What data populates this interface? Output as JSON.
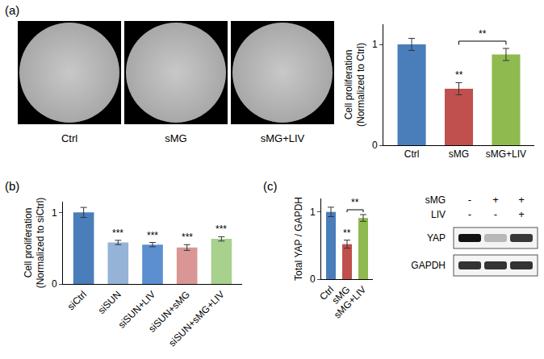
{
  "panel_labels": [
    "(a)",
    "(b)",
    "(c)"
  ],
  "images": {
    "labels": [
      "Ctrl",
      "sMG",
      "sMG+LIV"
    ]
  },
  "chart_data": [
    {
      "type": "bar",
      "categories": [
        "Ctrl",
        "sMG",
        "sMG+LIV"
      ],
      "values": [
        1.0,
        0.56,
        0.9
      ],
      "errors": [
        0.06,
        0.06,
        0.06
      ],
      "colors": [
        "#4a7ebb",
        "#c0504d",
        "#8fba4f"
      ],
      "y_label": [
        "Cell proliferation",
        "(Normalized to Ctrl)"
      ],
      "ylim": [
        0,
        1.2
      ],
      "yticks": [
        0,
        1
      ],
      "grid": false,
      "annotations": [
        {
          "text": "**",
          "category": "sMG"
        }
      ],
      "brackets": [
        {
          "text": "**",
          "from": "sMG",
          "to": "sMG+LIV"
        }
      ]
    },
    {
      "type": "bar",
      "categories": [
        "siCtrl",
        "siSUN",
        "siSUN+LIV",
        "siSUN+sMG",
        "siSUN+sMG+LIV"
      ],
      "values": [
        1.0,
        0.58,
        0.55,
        0.51,
        0.63
      ],
      "errors": [
        0.07,
        0.03,
        0.03,
        0.04,
        0.03
      ],
      "colors": [
        "#4a7ebb",
        "#95b3d7",
        "#5b8fd0",
        "#d99694",
        "#a9d18e"
      ],
      "y_label": [
        "Cell proliferation",
        "(Normalized to siCtrl)"
      ],
      "ylim": [
        0,
        1.15
      ],
      "yticks": [
        0,
        1
      ],
      "grid": false,
      "annotations": [
        {
          "text": "***",
          "category": "siSUN"
        },
        {
          "text": "***",
          "category": "siSUN+LIV"
        },
        {
          "text": "***",
          "category": "siSUN+sMG"
        },
        {
          "text": "***",
          "category": "siSUN+sMG+LIV"
        }
      ],
      "brackets": []
    },
    {
      "type": "bar",
      "categories": [
        "Ctrl",
        "sMG",
        "sMG+LIV"
      ],
      "values": [
        1.0,
        0.52,
        0.91
      ],
      "errors": [
        0.07,
        0.06,
        0.05
      ],
      "colors": [
        "#4a7ebb",
        "#c0504d",
        "#8fba4f"
      ],
      "y_label": [
        "Total YAP / GAPDH"
      ],
      "ylim": [
        0,
        1.2
      ],
      "yticks": [
        0,
        1
      ],
      "grid": false,
      "annotations": [
        {
          "text": "**",
          "category": "sMG"
        }
      ],
      "brackets": [
        {
          "text": "**",
          "from": "sMG",
          "to": "sMG+LIV"
        }
      ]
    }
  ],
  "blot": {
    "conditions": [
      {
        "label": "sMG",
        "values": [
          "-",
          "+",
          "+"
        ]
      },
      {
        "label": "LIV",
        "values": [
          "-",
          "-",
          "+"
        ]
      }
    ],
    "bands": [
      "YAP",
      "GAPDH"
    ]
  }
}
